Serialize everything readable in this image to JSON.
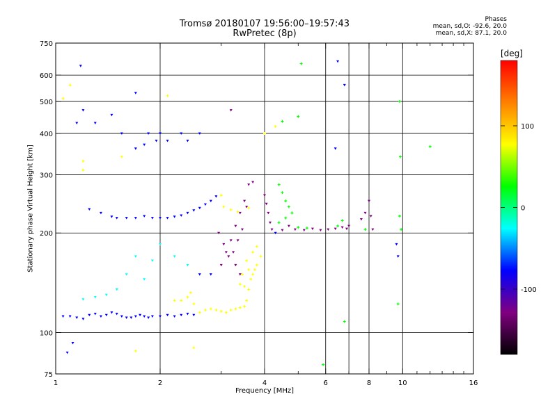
{
  "chart_data": {
    "type": "scatter",
    "title": "Tromsø 20180107 19:56:00–19:57:43",
    "subtitle": "RwPretec (8p)",
    "xlabel": "Frequency [MHz]",
    "ylabel": "Stationary phase Virtual Height [km]",
    "xscale": "log2",
    "yscale": "log",
    "xlim": [
      1,
      16
    ],
    "ylim": [
      75,
      750
    ],
    "x_ticks": [
      1,
      2,
      4,
      6,
      8,
      10,
      16
    ],
    "x_gridlines": [
      2,
      4,
      6,
      7,
      8,
      10
    ],
    "y_ticks": [
      75,
      100,
      200,
      300,
      400,
      500,
      600,
      750
    ],
    "grid": true,
    "legend": {
      "title": "Phases",
      "mode_o": "mean, sd,O: -92.6, 20.0",
      "mode_x": "mean, sd,X: 87.1, 20.0",
      "position": "top-right"
    },
    "colorbar": {
      "label": "[deg]",
      "range": [
        -180,
        180
      ],
      "ticks": [
        100,
        0,
        -100
      ],
      "colors": [
        "#ff0000",
        "#ff8000",
        "#ffff00",
        "#00ff00",
        "#00ffff",
        "#0000ff",
        "#800080",
        "#000000"
      ]
    },
    "series": [
      {
        "marker": "v",
        "points": [
          [
            1.05,
            112
          ],
          [
            1.1,
            112
          ],
          [
            1.15,
            111
          ],
          [
            1.2,
            110
          ],
          [
            1.25,
            113
          ],
          [
            1.3,
            114
          ],
          [
            1.35,
            112
          ],
          [
            1.4,
            113
          ],
          [
            1.45,
            115
          ],
          [
            1.5,
            114
          ],
          [
            1.55,
            112
          ],
          [
            1.6,
            111
          ],
          [
            1.65,
            111
          ],
          [
            1.7,
            112
          ],
          [
            1.75,
            113
          ],
          [
            1.8,
            112
          ],
          [
            1.85,
            111
          ],
          [
            1.9,
            112
          ],
          [
            2.0,
            112
          ],
          [
            2.1,
            113
          ],
          [
            2.2,
            112
          ],
          [
            2.3,
            113
          ],
          [
            2.4,
            114
          ],
          [
            2.5,
            113
          ],
          [
            1.2,
            126
          ],
          [
            1.3,
            128
          ],
          [
            1.4,
            130
          ],
          [
            1.5,
            135
          ],
          [
            1.6,
            150
          ],
          [
            1.7,
            170
          ],
          [
            1.8,
            145
          ],
          [
            1.9,
            165
          ],
          [
            2.0,
            185
          ],
          [
            2.2,
            170
          ],
          [
            2.4,
            160
          ],
          [
            2.6,
            150
          ],
          [
            2.8,
            150
          ],
          [
            3.0,
            160
          ],
          [
            3.1,
            175
          ],
          [
            3.2,
            190
          ],
          [
            3.3,
            210
          ],
          [
            3.4,
            230
          ],
          [
            3.5,
            250
          ],
          [
            3.6,
            280
          ],
          [
            3.7,
            285
          ],
          [
            3.55,
            240
          ],
          [
            3.45,
            205
          ],
          [
            3.35,
            190
          ],
          [
            3.25,
            175
          ],
          [
            3.15,
            170
          ],
          [
            3.05,
            185
          ],
          [
            2.95,
            200
          ],
          [
            3.3,
            160
          ],
          [
            3.4,
            150
          ],
          [
            1.5,
            222
          ],
          [
            1.6,
            222
          ],
          [
            1.7,
            222
          ],
          [
            1.8,
            225
          ],
          [
            1.9,
            222
          ],
          [
            2.0,
            222
          ],
          [
            2.1,
            222
          ],
          [
            2.2,
            224
          ],
          [
            2.3,
            226
          ],
          [
            2.4,
            230
          ],
          [
            2.5,
            234
          ],
          [
            2.6,
            238
          ],
          [
            2.7,
            244
          ],
          [
            2.8,
            250
          ],
          [
            2.9,
            258
          ],
          [
            1.25,
            236
          ],
          [
            1.35,
            230
          ],
          [
            1.45,
            224
          ],
          [
            4.0,
            260
          ],
          [
            4.05,
            245
          ],
          [
            4.1,
            230
          ],
          [
            4.15,
            215
          ],
          [
            4.2,
            205
          ],
          [
            4.3,
            200
          ],
          [
            4.5,
            204
          ],
          [
            4.7,
            210
          ],
          [
            4.9,
            205
          ],
          [
            5.2,
            204
          ],
          [
            5.5,
            206
          ],
          [
            5.8,
            204
          ],
          [
            6.1,
            205
          ],
          [
            6.4,
            206
          ],
          [
            6.7,
            208
          ],
          [
            6.9,
            206
          ],
          [
            7.0,
            210
          ],
          [
            7.6,
            220
          ],
          [
            7.8,
            230
          ],
          [
            8.0,
            250
          ],
          [
            8.1,
            225
          ],
          [
            8.2,
            205
          ],
          [
            1.15,
            430
          ],
          [
            1.2,
            470
          ],
          [
            1.3,
            430
          ],
          [
            1.45,
            455
          ],
          [
            1.55,
            400
          ],
          [
            1.7,
            360
          ],
          [
            1.8,
            370
          ],
          [
            1.85,
            400
          ],
          [
            1.95,
            380
          ],
          [
            2.0,
            400
          ],
          [
            2.1,
            380
          ],
          [
            2.3,
            400
          ],
          [
            2.4,
            380
          ],
          [
            2.6,
            400
          ],
          [
            1.18,
            640
          ],
          [
            6.5,
            660
          ],
          [
            6.4,
            360
          ],
          [
            6.8,
            560
          ],
          [
            1.08,
            87
          ],
          [
            1.12,
            93
          ],
          [
            3.2,
            470
          ],
          [
            9.6,
            185
          ],
          [
            9.7,
            170
          ],
          [
            1.7,
            530
          ]
        ]
      },
      {
        "marker": "+",
        "points": [
          [
            2.6,
            115
          ],
          [
            2.7,
            117
          ],
          [
            2.8,
            118
          ],
          [
            2.9,
            117
          ],
          [
            3.0,
            116
          ],
          [
            3.1,
            115
          ],
          [
            3.2,
            117
          ],
          [
            3.3,
            118
          ],
          [
            3.4,
            119
          ],
          [
            3.5,
            120
          ],
          [
            3.55,
            125
          ],
          [
            3.6,
            135
          ],
          [
            3.65,
            145
          ],
          [
            3.7,
            150
          ],
          [
            3.75,
            155
          ],
          [
            3.8,
            160
          ],
          [
            3.9,
            170
          ],
          [
            3.6,
            155
          ],
          [
            3.7,
            175
          ],
          [
            3.8,
            182
          ],
          [
            3.55,
            165
          ],
          [
            3.45,
            150
          ],
          [
            3.4,
            140
          ],
          [
            3.5,
            138
          ],
          [
            4.4,
            280
          ],
          [
            4.5,
            265
          ],
          [
            4.6,
            250
          ],
          [
            4.7,
            240
          ],
          [
            4.8,
            230
          ],
          [
            4.6,
            222
          ],
          [
            4.4,
            215
          ],
          [
            5.0,
            208
          ],
          [
            5.3,
            207
          ],
          [
            6.5,
            210
          ],
          [
            6.7,
            218
          ],
          [
            7.8,
            205
          ],
          [
            2.3,
            125
          ],
          [
            2.4,
            128
          ],
          [
            2.5,
            122
          ],
          [
            2.2,
            125
          ],
          [
            2.45,
            132
          ],
          [
            3.05,
            240
          ],
          [
            3.2,
            235
          ],
          [
            3.35,
            232
          ],
          [
            3.6,
            238
          ],
          [
            1.1,
            560
          ],
          [
            1.05,
            510
          ],
          [
            1.2,
            330
          ],
          [
            1.2,
            310
          ],
          [
            1.7,
            88
          ],
          [
            4.3,
            420
          ],
          [
            4.0,
            400
          ],
          [
            4.5,
            435
          ],
          [
            5.0,
            450
          ],
          [
            5.1,
            650
          ],
          [
            9.8,
            500
          ],
          [
            9.85,
            340
          ],
          [
            9.8,
            225
          ],
          [
            9.9,
            205
          ],
          [
            12.0,
            365
          ],
          [
            3.0,
            260
          ],
          [
            6.8,
            108
          ],
          [
            5.9,
            80
          ],
          [
            2.1,
            520
          ],
          [
            1.55,
            340
          ],
          [
            9.7,
            122
          ],
          [
            2.5,
            90
          ]
        ]
      }
    ]
  }
}
